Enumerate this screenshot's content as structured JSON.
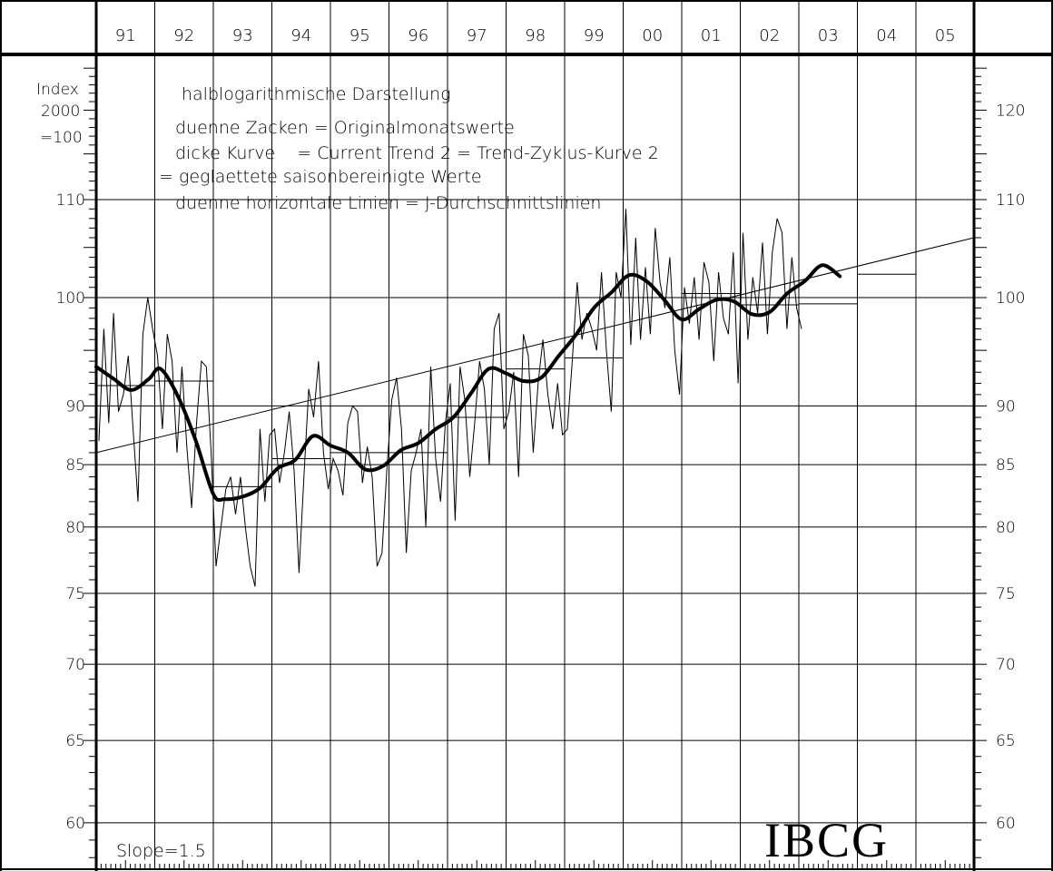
{
  "chart_data": {
    "type": "line",
    "scale": "log",
    "ylim": [
      58,
      125
    ],
    "y_axis_label": [
      "Index",
      "2000",
      "=100"
    ],
    "year_labels": [
      "91",
      "92",
      "93",
      "94",
      "95",
      "96",
      "97",
      "98",
      "99",
      "00",
      "01",
      "02",
      "03",
      "04",
      "05"
    ],
    "yticks_left": [
      60,
      65,
      70,
      75,
      80,
      85,
      90,
      100,
      110
    ],
    "yticks_right": [
      60,
      65,
      70,
      75,
      80,
      85,
      90,
      100,
      110,
      120
    ],
    "notes": [
      "halblogarithmische Darstellung",
      "duenne Zacken = Originalmonatswerte",
      "dicke Kurve    = Current Trend 2 = Trend-Zyklus-Kurve 2",
      "= geglaettete saisonbereinigte Werte",
      "duenne horizontale Linien = J-Durchschnittslinien"
    ],
    "slope_label": "Slope=1.5",
    "logo": "IBCG",
    "trend_line": {
      "start": 86,
      "end": 106
    },
    "yearly_averages": [
      91.8,
      92.2,
      83.2,
      85.5,
      86.0,
      86.0,
      89.0,
      93.3,
      94.3,
      100.0,
      100.4,
      99.3,
      99.4,
      102.3
    ],
    "trend_cycle": [
      {
        "x": 91.0,
        "y": 93.5
      },
      {
        "x": 91.3,
        "y": 92.4
      },
      {
        "x": 91.6,
        "y": 91.4
      },
      {
        "x": 91.9,
        "y": 92.4
      },
      {
        "x": 92.1,
        "y": 93.3
      },
      {
        "x": 92.4,
        "y": 90.8
      },
      {
        "x": 92.7,
        "y": 87.0
      },
      {
        "x": 93.0,
        "y": 82.6
      },
      {
        "x": 93.2,
        "y": 82.2
      },
      {
        "x": 93.5,
        "y": 82.4
      },
      {
        "x": 93.8,
        "y": 83.1
      },
      {
        "x": 94.1,
        "y": 84.7
      },
      {
        "x": 94.4,
        "y": 85.4
      },
      {
        "x": 94.7,
        "y": 87.4
      },
      {
        "x": 95.0,
        "y": 86.6
      },
      {
        "x": 95.3,
        "y": 86.0
      },
      {
        "x": 95.6,
        "y": 84.6
      },
      {
        "x": 95.9,
        "y": 84.9
      },
      {
        "x": 96.2,
        "y": 86.2
      },
      {
        "x": 96.5,
        "y": 86.8
      },
      {
        "x": 96.8,
        "y": 88.0
      },
      {
        "x": 97.1,
        "y": 89.0
      },
      {
        "x": 97.4,
        "y": 91.1
      },
      {
        "x": 97.7,
        "y": 93.3
      },
      {
        "x": 98.0,
        "y": 92.9
      },
      {
        "x": 98.3,
        "y": 92.2
      },
      {
        "x": 98.6,
        "y": 92.5
      },
      {
        "x": 98.9,
        "y": 94.5
      },
      {
        "x": 99.2,
        "y": 96.5
      },
      {
        "x": 99.5,
        "y": 99.0
      },
      {
        "x": 99.8,
        "y": 100.5
      },
      {
        "x": 100.1,
        "y": 102.2
      },
      {
        "x": 100.4,
        "y": 101.6
      },
      {
        "x": 100.7,
        "y": 99.8
      },
      {
        "x": 101.0,
        "y": 97.9
      },
      {
        "x": 101.3,
        "y": 98.9
      },
      {
        "x": 101.6,
        "y": 99.8
      },
      {
        "x": 101.9,
        "y": 99.6
      },
      {
        "x": 102.2,
        "y": 98.4
      },
      {
        "x": 102.5,
        "y": 98.6
      },
      {
        "x": 102.8,
        "y": 100.4
      },
      {
        "x": 103.1,
        "y": 101.6
      },
      {
        "x": 103.4,
        "y": 103.2
      },
      {
        "x": 103.7,
        "y": 102.1
      }
    ],
    "monthly_values": [
      87.0,
      97.0,
      88.5,
      98.5,
      89.5,
      91.0,
      94.5,
      88.0,
      82.0,
      96.5,
      100.0,
      97.0,
      94.5,
      88.0,
      96.5,
      94.0,
      86.0,
      93.5,
      86.5,
      81.5,
      88.5,
      94.0,
      93.5,
      86.0,
      77.0,
      80.0,
      83.0,
      84.0,
      81.0,
      84.0,
      80.0,
      77.0,
      75.5,
      88.0,
      82.0,
      87.5,
      88.0,
      83.5,
      86.0,
      89.5,
      84.5,
      76.5,
      84.0,
      91.5,
      89.0,
      94.0,
      86.0,
      83.0,
      85.5,
      84.5,
      82.5,
      88.5,
      90.0,
      89.5,
      83.5,
      86.5,
      84.0,
      77.0,
      78.0,
      84.5,
      90.5,
      92.5,
      88.0,
      78.0,
      84.5,
      86.0,
      88.0,
      80.0,
      93.5,
      85.5,
      82.0,
      88.5,
      92.0,
      80.5,
      93.5,
      90.5,
      84.0,
      88.5,
      94.0,
      91.5,
      85.0,
      97.0,
      98.5,
      88.0,
      89.5,
      93.0,
      84.0,
      96.5,
      94.5,
      86.0,
      92.0,
      96.0,
      91.0,
      88.0,
      92.0,
      87.5,
      88.0,
      94.0,
      101.5,
      96.0,
      98.5,
      97.0,
      95.0,
      102.5,
      95.0,
      89.5,
      102.5,
      100.0,
      109.0,
      95.5,
      106.0,
      96.0,
      103.0,
      96.5,
      107.0,
      101.5,
      99.0,
      104.0,
      95.0,
      91.0,
      101.0,
      97.5,
      102.0,
      96.0,
      103.5,
      101.5,
      94.0,
      102.5,
      98.0,
      96.5,
      104.5,
      92.0,
      106.5,
      96.0,
      102.0,
      98.5,
      105.5,
      96.5,
      104.5,
      108.0,
      106.5,
      97.0,
      104.0,
      99.0,
      97.0
    ]
  }
}
